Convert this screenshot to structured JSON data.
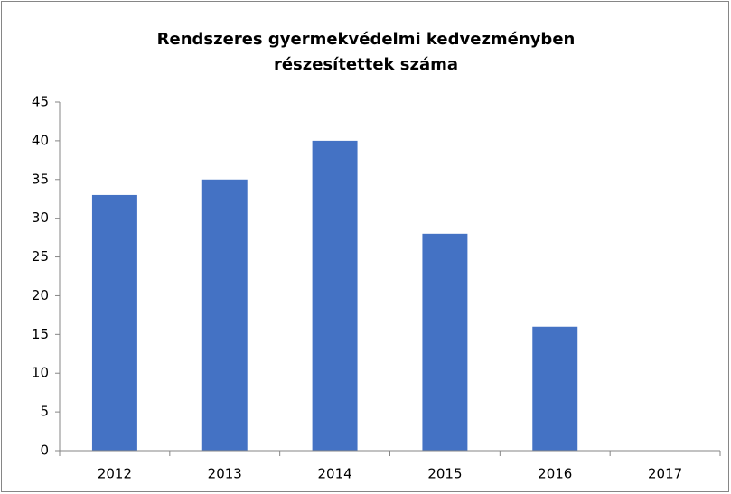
{
  "chart_data": {
    "type": "bar",
    "title": [
      "Rendszeres gyermekvédelmi kedvezményben",
      "részesítettek száma"
    ],
    "categories": [
      "2012",
      "2013",
      "2014",
      "2015",
      "2016",
      "2017"
    ],
    "values": [
      33,
      35,
      40,
      28,
      16,
      0
    ],
    "color": "#4472c4",
    "ylim": [
      0,
      45
    ],
    "yticks": [
      0,
      5,
      10,
      15,
      20,
      25,
      30,
      35,
      40,
      45
    ],
    "grid": false
  }
}
